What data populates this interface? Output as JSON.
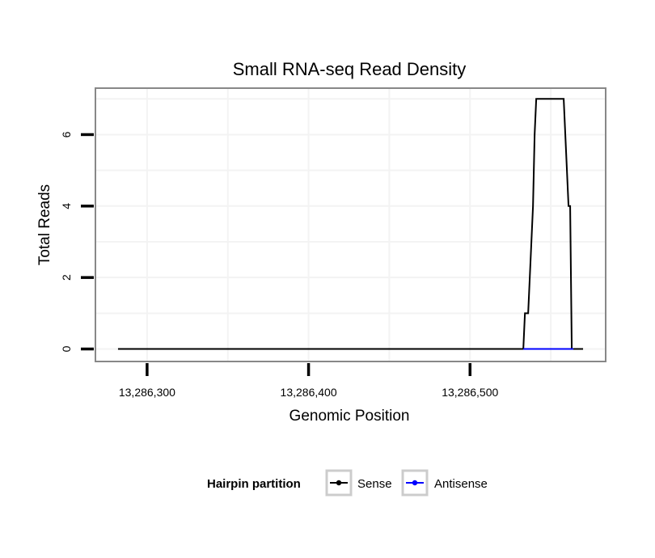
{
  "chart_data": {
    "type": "line",
    "title": "Small RNA-seq Read Density",
    "xlabel": "Genomic Position",
    "ylabel": "Total Reads",
    "xlim": [
      13286268,
      13286584
    ],
    "ylim": [
      -0.35,
      7.3
    ],
    "x_ticks": [
      13286300,
      13286400,
      13286500
    ],
    "x_tick_labels": [
      "13,286,300",
      "13,286,400",
      "13,286,500"
    ],
    "y_ticks": [
      0,
      2,
      4,
      6
    ],
    "y_tick_labels": [
      "0",
      "2",
      "4",
      "6"
    ],
    "grid": true,
    "legend": {
      "title": "Hairpin partition",
      "position": "bottom",
      "entries": [
        "Sense",
        "Antisense"
      ]
    },
    "series": [
      {
        "name": "Sense",
        "color": "#000000",
        "x": [
          13286282,
          13286533,
          13286534,
          13286536,
          13286537,
          13286538,
          13286539,
          13286539.5,
          13286540,
          13286541,
          13286542,
          13286543,
          13286544,
          13286545,
          13286550,
          13286555,
          13286556,
          13286557,
          13286558,
          13286559,
          13286560,
          13286561,
          13286562,
          13286563,
          13286564,
          13286565,
          13286570
        ],
        "y": [
          0,
          0,
          1,
          1,
          2,
          3,
          4,
          5,
          6,
          7,
          7,
          7,
          7,
          7,
          7,
          7,
          7,
          7,
          7,
          6,
          5,
          4,
          4,
          0,
          0,
          0,
          0
        ]
      },
      {
        "name": "Antisense",
        "color": "#0000ff",
        "x": [
          13286533,
          13286564
        ],
        "y": [
          0,
          0
        ]
      }
    ]
  }
}
